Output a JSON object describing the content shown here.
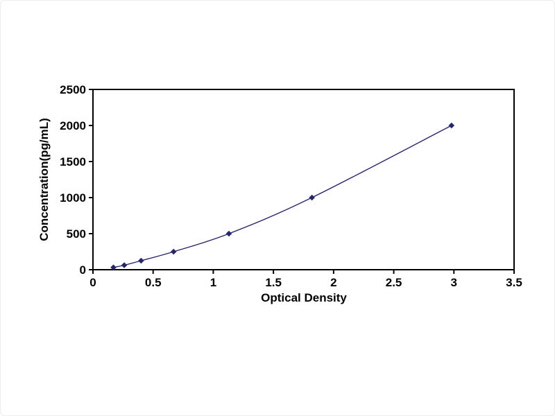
{
  "chart_data": {
    "type": "line",
    "title": "",
    "xlabel": "Optical Density",
    "ylabel": "Concentration(pg/mL)",
    "x": [
      0.17,
      0.26,
      0.4,
      0.67,
      1.13,
      1.82,
      2.98
    ],
    "y": [
      31.25,
      62.5,
      125,
      250,
      500,
      1000,
      2000
    ],
    "xlim": [
      0,
      3.5
    ],
    "ylim": [
      0,
      2500
    ],
    "x_ticks": [
      0,
      0.5,
      1,
      1.5,
      2,
      2.5,
      3,
      3.5
    ],
    "x_tick_labels": [
      "0",
      "0.5",
      "1",
      "1.5",
      "2",
      "2.5",
      "3",
      "3.5"
    ],
    "y_ticks": [
      0,
      500,
      1000,
      1500,
      2000,
      2500
    ],
    "y_tick_labels": [
      "0",
      "500",
      "1000",
      "1500",
      "2000",
      "2500"
    ],
    "grid": false,
    "legend": "none",
    "line_color": "#26266E",
    "marker": "diamond",
    "frame_color": "#000000",
    "background_color": "#ffffff"
  }
}
